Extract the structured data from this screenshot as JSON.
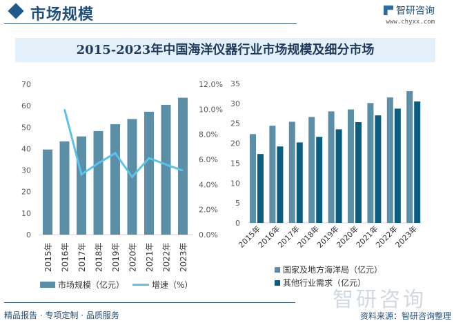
{
  "header": {
    "section_title": "市场规模",
    "brand": "智研咨询",
    "url": "www.chyxx.com"
  },
  "title": "2015-2023年中国海洋仪器行业市场规模及细分市场",
  "colors": {
    "bar": "#5b8fa8",
    "line": "#5bc3ea",
    "series1": "#5b8fa8",
    "series2": "#0b5e82",
    "header": "#1f4e79"
  },
  "chart_data": [
    {
      "type": "bar+line",
      "categories": [
        "2015年",
        "2016年",
        "2017年",
        "2018年",
        "2019年",
        "2020年",
        "2021年",
        "2022年",
        "2023年"
      ],
      "series": [
        {
          "name": "市场规模（亿元）",
          "type": "bar",
          "axis": "left",
          "values": [
            39.6,
            43.4,
            45.7,
            48.2,
            51.4,
            53.8,
            57.2,
            60.4,
            63.7
          ]
        },
        {
          "name": "增速（%）",
          "type": "line",
          "axis": "right",
          "values": [
            null,
            10.0,
            4.8,
            5.7,
            6.5,
            4.6,
            6.1,
            5.6,
            5.1
          ]
        }
      ],
      "yleft": {
        "ylim": [
          0,
          70
        ],
        "ticks": [
          "0",
          "10",
          "20",
          "30",
          "40",
          "50",
          "60",
          "70"
        ]
      },
      "yright": {
        "ylim": [
          0,
          12
        ],
        "ticks": [
          "0.0%",
          "2.0%",
          "4.0%",
          "6.0%",
          "8.0%",
          "10.0%",
          "12.0%"
        ]
      },
      "legend": "bottom",
      "grid": false
    },
    {
      "type": "bar",
      "categories": [
        "2015年",
        "2016年",
        "2017年",
        "2018年",
        "2019年",
        "2020年",
        "2021年",
        "2022年",
        "2023年"
      ],
      "series": [
        {
          "name": "国家及地方海洋局（亿元）",
          "values": [
            22.3,
            24.4,
            25.4,
            26.6,
            28.0,
            28.5,
            30.1,
            31.5,
            33.1
          ]
        },
        {
          "name": "其他行业需求（亿元）",
          "values": [
            17.3,
            19.2,
            20.2,
            21.6,
            23.5,
            25.3,
            27.0,
            28.7,
            30.5
          ]
        }
      ],
      "ylim": [
        0,
        35
      ],
      "ticks": [
        "0",
        "5",
        "10",
        "15",
        "20",
        "25",
        "30",
        "35"
      ],
      "legend": "bottom",
      "grid": false
    }
  ],
  "footer": {
    "slogan": "精品报告 · 专项定制 · 品质服务",
    "source": "资料来源：智研咨询整理",
    "watermark": "智研咨询"
  }
}
